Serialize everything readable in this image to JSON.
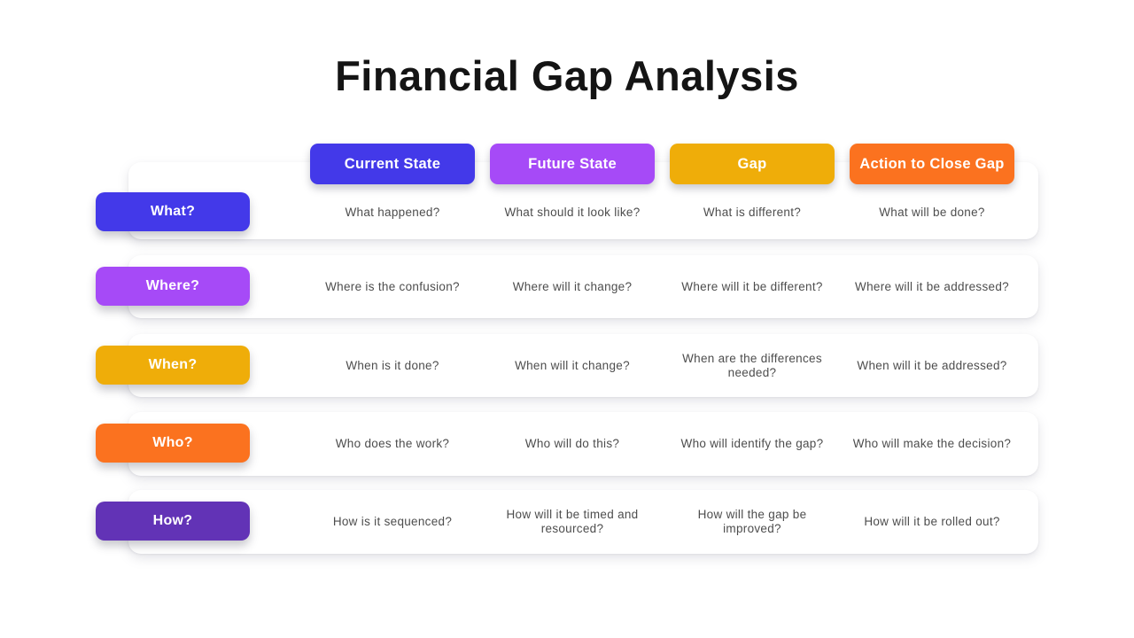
{
  "title": "Financial Gap Analysis",
  "colors": {
    "blue": "#4339E9",
    "purple": "#A64AF7",
    "gold": "#EFAD09",
    "orange": "#FB721F",
    "dark_purple": "#6233B6",
    "cell_text": "#4d4d4d",
    "background": "#ffffff"
  },
  "columns": [
    {
      "label": "Current State",
      "color": "#4339E9"
    },
    {
      "label": "Future State",
      "color": "#A64AF7"
    },
    {
      "label": "Gap",
      "color": "#EFAD09"
    },
    {
      "label": "Action to Close Gap",
      "color": "#FB721F"
    }
  ],
  "rows": [
    {
      "label": "What?",
      "color": "#4339E9",
      "cells": [
        "What happened?",
        "What should it look like?",
        "What is different?",
        "What will be done?"
      ]
    },
    {
      "label": "Where?",
      "color": "#A64AF7",
      "cells": [
        "Where is the confusion?",
        "Where will it change?",
        "Where will it be different?",
        "Where will it be addressed?"
      ]
    },
    {
      "label": "When?",
      "color": "#EFAD09",
      "cells": [
        "When is it done?",
        "When will it change?",
        "When are the differences needed?",
        "When will it be addressed?"
      ]
    },
    {
      "label": "Who?",
      "color": "#FB721F",
      "cells": [
        "Who does the work?",
        "Who will do this?",
        "Who will identify the gap?",
        "Who will make the decision?"
      ]
    },
    {
      "label": "How?",
      "color": "#6233B6",
      "cells": [
        "How is it sequenced?",
        "How will it be timed and resourced?",
        "How will the gap be improved?",
        "How will it be rolled out?"
      ]
    }
  ]
}
